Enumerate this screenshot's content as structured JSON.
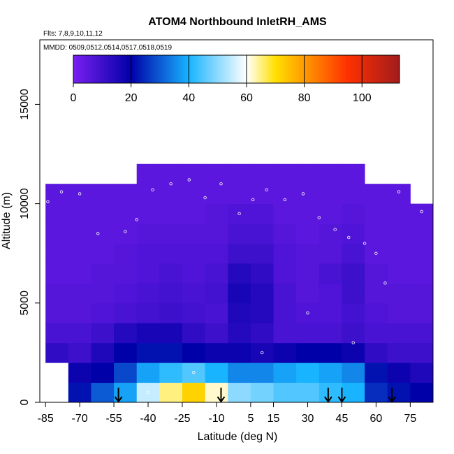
{
  "chart_data": {
    "type": "heatmap",
    "title": "ATOM4 Northbound InletRH_AMS",
    "subtitle": "Flts: 7,8,9,10,11,12",
    "annotation": "MMDD: 0509,0512,0514,0517,0518,0519",
    "x_label": "Latitude (deg N)",
    "y_label": "Altitude (m)",
    "xlim": [
      -87.5,
      85
    ],
    "ylim": [
      0,
      18250
    ],
    "xticks": [
      -85,
      -70,
      -55,
      -40,
      -25,
      -10,
      5,
      15,
      30,
      45,
      60,
      75
    ],
    "yticks": [
      0,
      5000,
      10000,
      15000
    ],
    "colorbar": {
      "zlim": [
        0,
        113
      ],
      "ticks": [
        0,
        20,
        40,
        60,
        80,
        100
      ],
      "stops": [
        {
          "value": 0,
          "color": "#7a1ff0"
        },
        {
          "value": 20,
          "color": "#0000a8"
        },
        {
          "value": 40,
          "color": "#18b4ff"
        },
        {
          "value": 60,
          "color": "#ffffff"
        },
        {
          "value": 70,
          "color": "#ffe000"
        },
        {
          "value": 80,
          "color": "#ff9a00"
        },
        {
          "value": 95,
          "color": "#ff3000"
        },
        {
          "value": 113,
          "color": "#a01c1c"
        }
      ]
    },
    "heatmap": {
      "x_edges": [
        -85,
        -75,
        -65,
        -55,
        -45,
        -35,
        -25,
        -15,
        -5,
        5,
        15,
        25,
        35,
        45,
        55,
        65,
        75,
        85
      ],
      "y_edges": [
        0,
        1000,
        2000,
        3000,
        4000,
        5000,
        6000,
        7000,
        8000,
        9000,
        10000,
        11000,
        12000
      ],
      "values": [
        [
          null,
          22,
          30,
          38,
          55,
          65,
          72,
          62,
          50,
          48,
          45,
          45,
          42,
          40,
          25,
          22,
          20
        ],
        [
          null,
          18,
          20,
          28,
          38,
          42,
          45,
          40,
          35,
          35,
          38,
          40,
          38,
          35,
          22,
          18,
          15
        ],
        [
          12,
          10,
          15,
          20,
          22,
          22,
          20,
          18,
          18,
          16,
          18,
          20,
          20,
          18,
          12,
          10,
          10
        ],
        [
          8,
          8,
          10,
          14,
          16,
          16,
          12,
          10,
          14,
          12,
          8,
          8,
          8,
          10,
          8,
          8,
          8
        ],
        [
          6,
          6,
          7,
          8,
          9,
          10,
          9,
          8,
          15,
          14,
          8,
          7,
          7,
          9,
          7,
          6,
          6
        ],
        [
          6,
          6,
          6,
          7,
          8,
          9,
          8,
          9,
          16,
          14,
          8,
          6,
          7,
          10,
          6,
          6,
          6
        ],
        [
          5,
          5,
          6,
          6,
          7,
          8,
          7,
          8,
          14,
          12,
          7,
          6,
          8,
          10,
          6,
          5,
          5
        ],
        [
          5,
          5,
          5,
          6,
          7,
          7,
          7,
          7,
          10,
          10,
          7,
          6,
          6,
          8,
          5,
          5,
          5
        ],
        [
          5,
          5,
          5,
          5,
          6,
          6,
          6,
          6,
          8,
          8,
          6,
          5,
          6,
          7,
          5,
          5,
          5
        ],
        [
          5,
          5,
          5,
          5,
          5,
          5,
          5,
          6,
          7,
          7,
          5,
          5,
          5,
          6,
          5,
          5,
          5
        ],
        [
          5,
          5,
          5,
          5,
          5,
          5,
          5,
          5,
          5,
          5,
          5,
          5,
          5,
          5,
          5,
          5,
          null
        ],
        [
          null,
          null,
          null,
          null,
          5,
          5,
          5,
          5,
          5,
          5,
          5,
          5,
          5,
          5,
          null,
          null,
          null
        ]
      ]
    },
    "track": {
      "x": [
        -84,
        -78,
        -70,
        -62,
        -50,
        -45,
        -38,
        -30,
        -22,
        -15,
        -8,
        0,
        6,
        12,
        20,
        28,
        35,
        42,
        48,
        55,
        60,
        64,
        70,
        74,
        80,
        -40,
        -20,
        10,
        30,
        50
      ],
      "y": [
        10100,
        10600,
        10500,
        8500,
        8600,
        9200,
        10700,
        11000,
        11200,
        10300,
        11000,
        9500,
        10200,
        10700,
        10200,
        10500,
        9300,
        8700,
        8300,
        8000,
        7500,
        6000,
        10600,
        11200,
        9600,
        500,
        1500,
        2500,
        4500,
        3000
      ]
    },
    "arrows": [
      -53,
      -8,
      39,
      45,
      67
    ]
  }
}
